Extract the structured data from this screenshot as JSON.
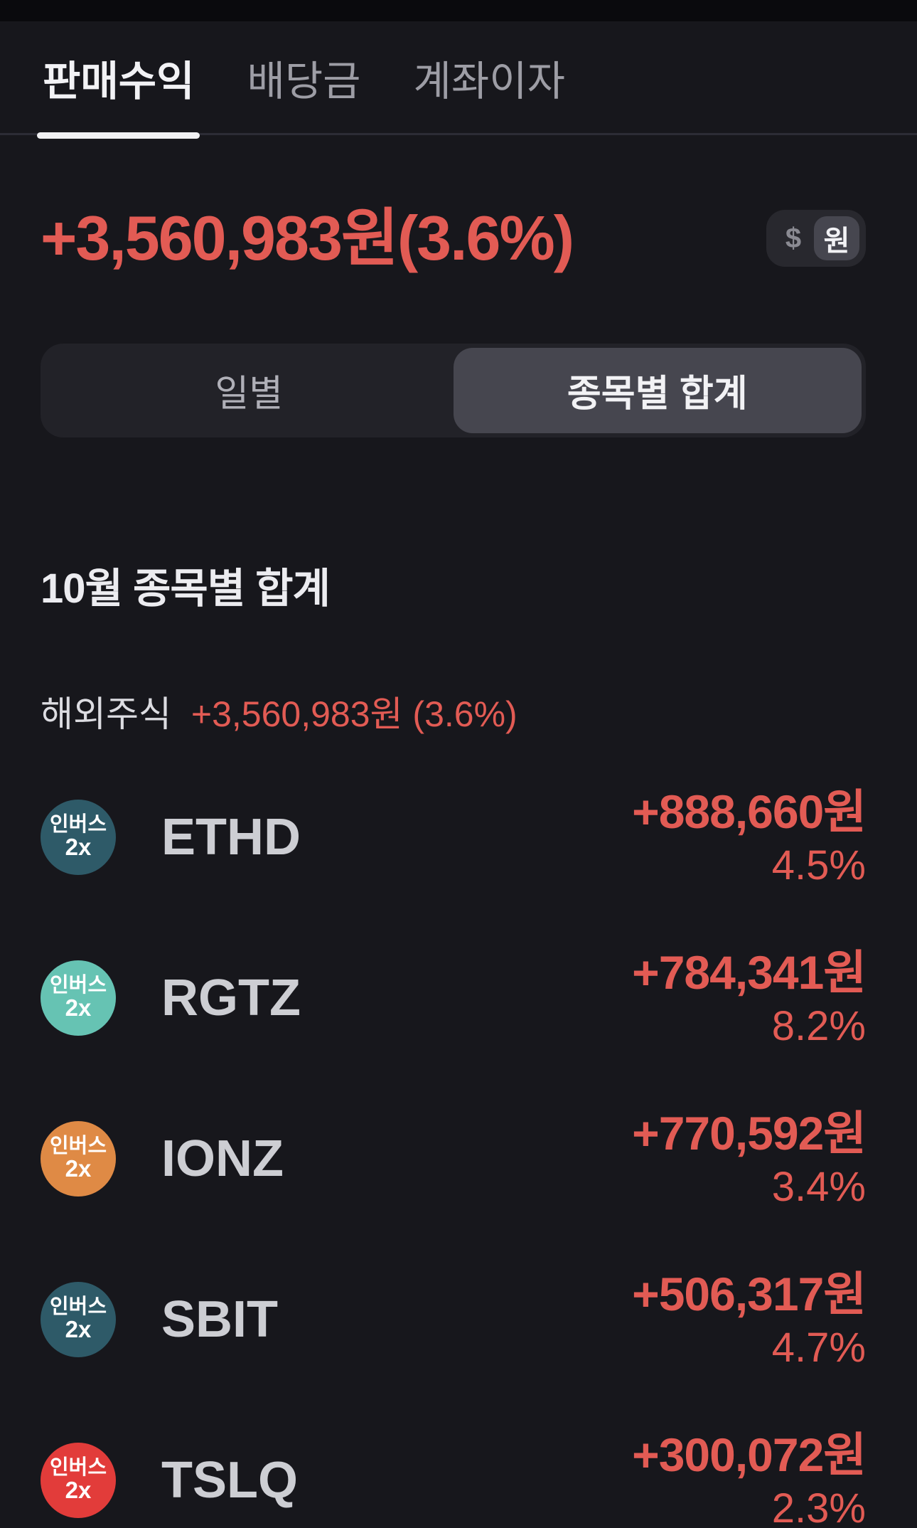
{
  "colors": {
    "page_bg": "#17171c",
    "top_strip": "#0a0a0d",
    "divider": "#2c2c35",
    "tab_active_text": "#f2f2f5",
    "tab_inactive_text": "#9d9da5",
    "tab_underline": "#f0f0f2",
    "profit_red": "#e25b54",
    "heading_text": "#ececf0",
    "ticker_text": "#cdced3",
    "group_label_text": "#dcdce1",
    "segment_bg": "#222228",
    "segment_selected_bg": "#46464f",
    "segment_inactive_text": "#b0b0b8",
    "segment_selected_text": "#f2f2f5",
    "toggle_bg": "#28282e",
    "toggle_selected_bg": "#46464f",
    "toggle_usd_text": "#8a8a92",
    "toggle_krw_text": "#f2f2f5"
  },
  "tab_bar": {
    "tabs": [
      {
        "label": "판매수익",
        "active": true
      },
      {
        "label": "배당금",
        "active": false
      },
      {
        "label": "계좌이자",
        "active": false
      }
    ]
  },
  "summary": {
    "total_profit": "+3,560,983원(3.6%)",
    "currency_toggle": {
      "usd_label": "$",
      "krw_label": "원",
      "selected": "krw"
    }
  },
  "period_toggle": {
    "options": [
      {
        "label": "일별",
        "selected": false
      },
      {
        "label": "종목별 합계",
        "selected": true
      }
    ]
  },
  "section": {
    "title": "10월 종목별 합계"
  },
  "group": {
    "label": "해외주식",
    "value": "+3,560,983원 (3.6%)"
  },
  "rows": [
    {
      "badge": {
        "line1": "인버스",
        "line2": "2x",
        "color": "#2e5a68"
      },
      "ticker": "ETHD",
      "amount": "+888,660원",
      "percent": "4.5%"
    },
    {
      "badge": {
        "line1": "인버스",
        "line2": "2x",
        "color": "#66c3b3"
      },
      "ticker": "RGTZ",
      "amount": "+784,341원",
      "percent": "8.2%"
    },
    {
      "badge": {
        "line1": "인버스",
        "line2": "2x",
        "color": "#df8a45"
      },
      "ticker": "IONZ",
      "amount": "+770,592원",
      "percent": "3.4%"
    },
    {
      "badge": {
        "line1": "인버스",
        "line2": "2x",
        "color": "#2e5a68"
      },
      "ticker": "SBIT",
      "amount": "+506,317원",
      "percent": "4.7%"
    },
    {
      "badge": {
        "line1": "인버스",
        "line2": "2x",
        "color": "#e23c3a"
      },
      "ticker": "TSLQ",
      "amount": "+300,072원",
      "percent": "2.3%"
    }
  ]
}
